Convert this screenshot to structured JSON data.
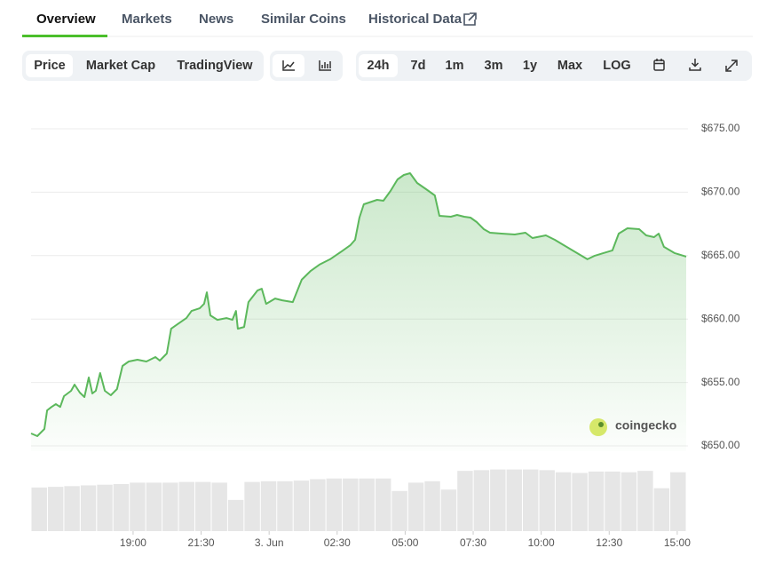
{
  "tabs": [
    "Overview",
    "Markets",
    "News",
    "Similar Coins",
    "Historical Data"
  ],
  "chart_views": [
    "Price",
    "Market Cap",
    "TradingView"
  ],
  "ranges": [
    "24h",
    "7d",
    "1m",
    "3m",
    "1y",
    "Max",
    "LOG"
  ],
  "watermark": "coingecko",
  "chart_data": {
    "type": "area",
    "color": "#5cb85c",
    "x": [
      -8.75,
      -8.52,
      -8.26,
      -8.16,
      -8.0,
      -7.84,
      -7.68,
      -7.54,
      -7.28,
      -7.15,
      -6.96,
      -6.79,
      -6.63,
      -6.5,
      -6.37,
      -6.21,
      -6.04,
      -5.82,
      -5.59,
      -5.39,
      -5.16,
      -4.84,
      -4.51,
      -4.18,
      -4.02,
      -3.76,
      -3.6,
      -3.37,
      -3.04,
      -2.85,
      -2.55,
      -2.39,
      -2.29,
      -2.16,
      -1.9,
      -1.57,
      -1.35,
      -1.22,
      -1.15,
      -0.92,
      -0.76,
      -0.43,
      -0.27,
      -0.11,
      0.22,
      0.48,
      0.87,
      1.2,
      1.53,
      1.85,
      2.24,
      2.67,
      2.99,
      3.16,
      3.32,
      3.48,
      3.97,
      4.2,
      4.46,
      4.72,
      4.95,
      5.18,
      5.44,
      5.77,
      6.09,
      6.26,
      6.68,
      6.91,
      7.17,
      7.4,
      7.63,
      7.89,
      8.12,
      8.54,
      9.03,
      9.42,
      9.68,
      10.17,
      10.5,
      10.82,
      11.15,
      11.48,
      11.7,
      11.97,
      12.29,
      12.62,
      12.85,
      13.17,
      13.6,
      13.86,
      14.15,
      14.32,
      14.51,
      14.9,
      15.33
    ],
    "values": [
      650.98,
      650.77,
      651.33,
      652.8,
      653.07,
      653.29,
      653.07,
      653.92,
      654.34,
      654.83,
      654.2,
      653.85,
      655.39,
      654.13,
      654.34,
      655.74,
      654.34,
      653.99,
      654.48,
      656.3,
      656.65,
      656.79,
      656.65,
      657.0,
      656.72,
      657.28,
      659.24,
      659.59,
      660.08,
      660.64,
      660.85,
      661.2,
      662.11,
      660.29,
      659.94,
      660.08,
      659.94,
      660.64,
      659.24,
      659.38,
      661.34,
      662.25,
      662.39,
      661.2,
      661.62,
      661.48,
      661.34,
      663.1,
      663.8,
      664.29,
      664.71,
      665.34,
      665.83,
      666.25,
      668.0,
      669.05,
      669.4,
      669.33,
      670.1,
      671.01,
      671.36,
      671.5,
      670.73,
      670.24,
      669.75,
      668.14,
      668.07,
      668.21,
      668.07,
      668.0,
      667.65,
      667.09,
      666.81,
      666.74,
      666.67,
      666.81,
      666.39,
      666.6,
      666.25,
      665.83,
      665.41,
      664.99,
      664.71,
      664.99,
      665.2,
      665.41,
      666.74,
      667.16,
      667.09,
      666.6,
      666.46,
      666.74,
      665.69,
      665.2,
      664.92
    ],
    "xlim": [
      -8.75,
      15.33
    ],
    "xticks": [
      {
        "value": -5,
        "label": "19:00"
      },
      {
        "value": -2.5,
        "label": "21:30"
      },
      {
        "value": 0,
        "label": "3. Jun"
      },
      {
        "value": 2.5,
        "label": "02:30"
      },
      {
        "value": 5,
        "label": "05:00"
      },
      {
        "value": 7.5,
        "label": "07:30"
      },
      {
        "value": 10,
        "label": "10:00"
      },
      {
        "value": 12.5,
        "label": "12:30"
      },
      {
        "value": 15,
        "label": "15:00"
      }
    ],
    "ylim": [
      649.58,
      675
    ],
    "yticks": [
      {
        "value": 650,
        "label": "$650.00"
      },
      {
        "value": 655,
        "label": "$655.00"
      },
      {
        "value": 660,
        "label": "$660.00"
      },
      {
        "value": 665,
        "label": "$665.00"
      },
      {
        "value": 670,
        "label": "$670.00"
      },
      {
        "value": 675,
        "label": "$675.00"
      }
    ],
    "grid": true,
    "volume": {
      "color": "#e6e6e6",
      "values": [
        63,
        64,
        65,
        66,
        67,
        68,
        70,
        70,
        70,
        71,
        71,
        70,
        45,
        71,
        72,
        72,
        73,
        75,
        76,
        76,
        76,
        76,
        58,
        70,
        72,
        60,
        87,
        88,
        89,
        89,
        89,
        88,
        85,
        84,
        86,
        86,
        85,
        87,
        62,
        85
      ],
      "lim": [
        0,
        100
      ]
    }
  }
}
